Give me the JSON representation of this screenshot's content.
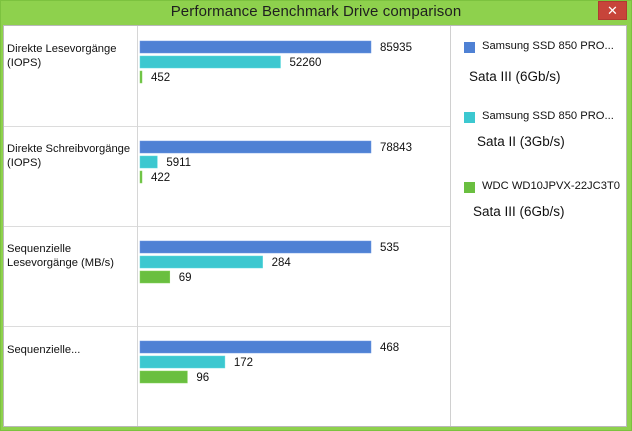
{
  "window": {
    "title": "Performance Benchmark Drive comparison",
    "close_glyph": "✕",
    "frame_color": "#8ed14d"
  },
  "categories": [
    "Direkte Lesevorgänge (IOPS)",
    "Direkte Schreibvorgänge (IOPS)",
    "Sequenzielle Lesevorgänge (MB/s)",
    "Sequenzielle..."
  ],
  "legend": [
    {
      "name": "Samsung SSD 850 PRO...",
      "sub": "Sata III (6Gb/s)",
      "color": "#4f81d4"
    },
    {
      "name": "Samsung SSD 850 PRO...",
      "sub": "Sata II (3Gb/s)",
      "color": "#3cc8d0"
    },
    {
      "name": "WDC WD10JPVX-22JC3T0",
      "sub": "Sata III (6Gb/s)",
      "color": "#6abf40"
    }
  ],
  "chart_data": {
    "type": "bar",
    "orientation": "horizontal",
    "title": "Performance Benchmark Drive comparison",
    "categories": [
      "Direkte Lesevorgänge (IOPS)",
      "Direkte Schreibvorgänge (IOPS)",
      "Sequenzielle Lesevorgänge (MB/s)",
      "Sequenzielle..."
    ],
    "series": [
      {
        "name": "Samsung SSD 850 PRO... Sata III (6Gb/s)",
        "color": "#4f81d4",
        "values": [
          85935,
          78843,
          535,
          468
        ]
      },
      {
        "name": "Samsung SSD 850 PRO... Sata II (3Gb/s)",
        "color": "#3cc8d0",
        "values": [
          52260,
          5911,
          284,
          172
        ]
      },
      {
        "name": "WDC WD10JPVX-22JC3T0 Sata III (6Gb/s)",
        "color": "#6abf40",
        "values": [
          452,
          422,
          69,
          96
        ]
      }
    ],
    "scaling": "each category scaled to its own maximum",
    "legend_position": "right",
    "grid": false
  }
}
